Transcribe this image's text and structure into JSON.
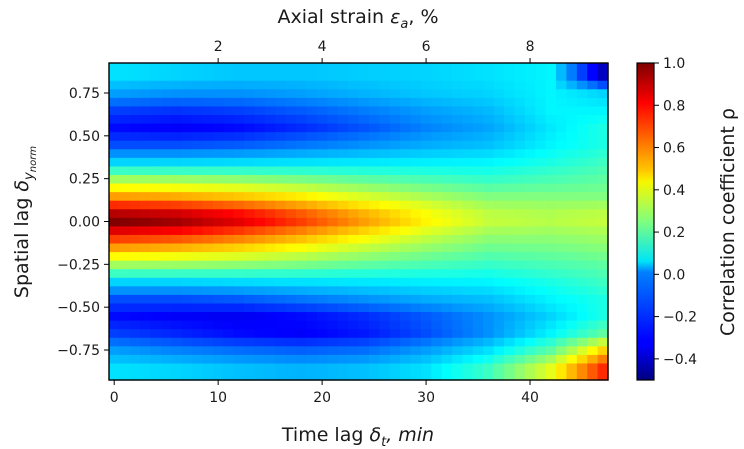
{
  "chart_data": {
    "type": "heatmap",
    "colormap": "jet",
    "x_bottom": {
      "label_prefix": "Time lag ",
      "symbol": "δ",
      "symbol_sub": "t",
      "label_suffix": ", min",
      "range": [
        -0.5,
        47.5
      ],
      "ticks": [
        0,
        10,
        20,
        30,
        40
      ]
    },
    "x_top": {
      "label_prefix": "Axial strain ",
      "symbol": "ε",
      "symbol_sub": "a",
      "label_suffix": ", %",
      "ticks": [
        2,
        4,
        6,
        8
      ],
      "strain_per_minute": 0.2
    },
    "y": {
      "label_prefix": "Spatial lag ",
      "symbol": "δ",
      "symbol_sub": "y",
      "symbol_subsub": "norm",
      "range": [
        -0.925,
        0.925
      ],
      "ticks": [
        0.75,
        0.5,
        0.25,
        0.0,
        -0.25,
        -0.5,
        -0.75
      ],
      "tick_labels": [
        "0.75",
        "0.50",
        "0.25",
        "0.00",
        "−0.25",
        "−0.50",
        "−0.75"
      ]
    },
    "colorbar": {
      "label": "Correlation coefficient ρ",
      "range": [
        -0.5,
        1.0
      ],
      "ticks": [
        1.0,
        0.8,
        0.6,
        0.4,
        0.2,
        0.0,
        -0.2,
        -0.4
      ],
      "tick_labels": [
        "1.0",
        "0.8",
        "0.6",
        "0.4",
        "0.2",
        "0.0",
        "−0.2",
        "−0.4"
      ]
    },
    "grid": {
      "n_cols": 48,
      "n_rows": 37,
      "col_start": 0,
      "col_step": 1,
      "row_start": -0.9,
      "row_step": 0.05
    },
    "profile_rows": [
      {
        "y": 0.0,
        "values": [
          1.0,
          0.95,
          0.85,
          0.72,
          0.58,
          0.45,
          0.35,
          0.33,
          0.35
        ]
      },
      {
        "y": 0.05,
        "values": [
          0.92,
          0.88,
          0.8,
          0.68,
          0.55,
          0.43,
          0.34,
          0.32,
          0.34
        ]
      },
      {
        "y": 0.1,
        "values": [
          0.75,
          0.72,
          0.66,
          0.57,
          0.47,
          0.38,
          0.3,
          0.29,
          0.3
        ]
      },
      {
        "y": 0.15,
        "values": [
          0.58,
          0.56,
          0.52,
          0.46,
          0.38,
          0.31,
          0.25,
          0.25,
          0.25
        ]
      },
      {
        "y": 0.25,
        "values": [
          0.3,
          0.29,
          0.27,
          0.24,
          0.2,
          0.17,
          0.14,
          0.17,
          0.2
        ]
      },
      {
        "y": 0.35,
        "values": [
          0.0,
          0.0,
          0.01,
          0.02,
          0.03,
          0.04,
          0.05,
          0.1,
          0.15
        ]
      },
      {
        "y": 0.45,
        "values": [
          -0.2,
          -0.2,
          -0.18,
          -0.14,
          -0.1,
          -0.06,
          -0.03,
          0.05,
          0.1
        ]
      },
      {
        "y": 0.55,
        "values": [
          -0.3,
          -0.32,
          -0.3,
          -0.25,
          -0.19,
          -0.12,
          -0.07,
          0.03,
          0.1
        ]
      },
      {
        "y": 0.65,
        "values": [
          -0.22,
          -0.24,
          -0.22,
          -0.18,
          -0.13,
          -0.08,
          -0.04,
          0.05,
          0.05
        ]
      },
      {
        "y": 0.75,
        "values": [
          -0.08,
          -0.1,
          -0.1,
          -0.08,
          -0.05,
          -0.02,
          0.0,
          0.05,
          0.0
        ]
      },
      {
        "y": 0.85,
        "values": [
          0.02,
          0.0,
          -0.02,
          -0.02,
          -0.01,
          0.0,
          0.02,
          0.05,
          -0.4
        ]
      },
      {
        "y": -0.25,
        "values": [
          0.3,
          0.29,
          0.27,
          0.24,
          0.2,
          0.17,
          0.14,
          0.17,
          0.2
        ]
      },
      {
        "y": -0.35,
        "values": [
          0.0,
          0.0,
          0.01,
          0.02,
          0.03,
          0.04,
          0.05,
          0.1,
          0.15
        ]
      },
      {
        "y": -0.45,
        "values": [
          -0.2,
          -0.2,
          -0.18,
          -0.14,
          -0.1,
          -0.06,
          -0.03,
          0.05,
          0.1
        ]
      },
      {
        "y": -0.55,
        "values": [
          -0.3,
          -0.32,
          -0.33,
          -0.3,
          -0.25,
          -0.18,
          -0.1,
          0.0,
          0.1
        ]
      },
      {
        "y": -0.65,
        "values": [
          -0.22,
          -0.26,
          -0.3,
          -0.32,
          -0.28,
          -0.2,
          -0.1,
          0.05,
          0.2
        ]
      },
      {
        "y": -0.75,
        "values": [
          -0.08,
          -0.12,
          -0.15,
          -0.17,
          -0.15,
          -0.08,
          0.02,
          0.2,
          0.5
        ]
      },
      {
        "y": -0.85,
        "values": [
          0.02,
          0.0,
          -0.03,
          -0.05,
          -0.03,
          0.02,
          0.15,
          0.4,
          0.75
        ]
      }
    ],
    "profile_x": [
      0,
      6,
      12,
      18,
      24,
      30,
      36,
      42,
      47
    ]
  }
}
